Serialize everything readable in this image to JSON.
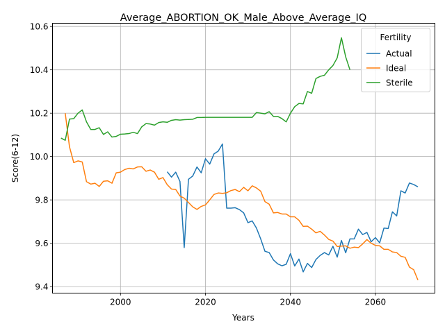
{
  "chart_data": {
    "type": "line",
    "title": "Average_ABORTION_OK_Male_Above_Average_IQ",
    "xlabel": "Years",
    "ylabel": "Score(6-12)",
    "xlim": [
      1984,
      2074
    ],
    "ylim": [
      9.37,
      10.615
    ],
    "xticks": [
      2000,
      2020,
      2040,
      2060
    ],
    "yticks": [
      9.4,
      9.6,
      9.8,
      10.0,
      10.2,
      10.4,
      10.6
    ],
    "grid": true,
    "legend": {
      "title": "Fertility",
      "position": "top-right"
    },
    "series": [
      {
        "name": "Actual",
        "color": "#1f77b4",
        "x": [
          2011,
          2012,
          2013,
          2014,
          2015,
          2016,
          2017,
          2018,
          2019,
          2020,
          2021,
          2022,
          2023,
          2024,
          2025,
          2026,
          2027,
          2028,
          2029,
          2030,
          2031,
          2032,
          2033,
          2034,
          2035,
          2036,
          2037,
          2038,
          2039,
          2040,
          2041,
          2042,
          2043,
          2044,
          2045,
          2046,
          2047,
          2048,
          2049,
          2050,
          2051,
          2052,
          2053,
          2054,
          2055,
          2056,
          2057,
          2058,
          2059,
          2060,
          2061,
          2062,
          2063,
          2064,
          2065,
          2066,
          2067,
          2068,
          2069,
          2070
        ],
        "y": [
          9.93,
          9.905,
          9.928,
          9.885,
          9.58,
          9.895,
          9.91,
          9.952,
          9.925,
          9.99,
          9.965,
          10.012,
          10.025,
          10.058,
          9.762,
          9.762,
          9.764,
          9.755,
          9.74,
          9.695,
          9.703,
          9.67,
          9.62,
          9.563,
          9.557,
          9.523,
          9.505,
          9.496,
          9.503,
          9.552,
          9.495,
          9.527,
          9.468,
          9.507,
          9.488,
          9.525,
          9.544,
          9.557,
          9.546,
          9.586,
          9.536,
          9.613,
          9.556,
          9.62,
          9.62,
          9.665,
          9.64,
          9.65,
          9.607,
          9.626,
          9.602,
          9.67,
          9.668,
          9.745,
          9.726,
          9.842,
          9.832,
          9.878,
          9.871,
          9.86
        ]
      },
      {
        "name": "Ideal",
        "color": "#ff7f0e",
        "x": [
          1987,
          1988,
          1989,
          1990,
          1991,
          1992,
          1993,
          1994,
          1995,
          1996,
          1997,
          1998,
          1999,
          2000,
          2001,
          2002,
          2003,
          2004,
          2005,
          2006,
          2007,
          2008,
          2009,
          2010,
          2011,
          2012,
          2013,
          2014,
          2015,
          2016,
          2017,
          2018,
          2019,
          2020,
          2021,
          2022,
          2023,
          2024,
          2025,
          2026,
          2027,
          2028,
          2029,
          2030,
          2031,
          2032,
          2033,
          2034,
          2035,
          2036,
          2037,
          2038,
          2039,
          2040,
          2041,
          2042,
          2043,
          2044,
          2045,
          2046,
          2047,
          2048,
          2049,
          2050,
          2051,
          2052,
          2053,
          2054,
          2055,
          2056,
          2057,
          2058,
          2059,
          2060,
          2061,
          2062,
          2063,
          2064,
          2065,
          2066,
          2067,
          2068,
          2069,
          2070
        ],
        "y": [
          10.2,
          10.045,
          9.972,
          9.98,
          9.975,
          9.884,
          9.873,
          9.877,
          9.862,
          9.886,
          9.888,
          9.877,
          9.925,
          9.928,
          9.94,
          9.946,
          9.943,
          9.952,
          9.953,
          9.932,
          9.938,
          9.928,
          9.895,
          9.903,
          9.87,
          9.85,
          9.848,
          9.818,
          9.808,
          9.788,
          9.768,
          9.756,
          9.77,
          9.777,
          9.8,
          9.825,
          9.832,
          9.83,
          9.833,
          9.843,
          9.848,
          9.838,
          9.858,
          9.842,
          9.865,
          9.855,
          9.84,
          9.792,
          9.78,
          9.74,
          9.742,
          9.735,
          9.735,
          9.722,
          9.722,
          9.706,
          9.678,
          9.679,
          9.665,
          9.648,
          9.655,
          9.638,
          9.618,
          9.61,
          9.585,
          9.587,
          9.588,
          9.577,
          9.582,
          9.58,
          9.597,
          9.617,
          9.6,
          9.59,
          9.588,
          9.572,
          9.572,
          9.56,
          9.557,
          9.54,
          9.535,
          9.49,
          9.478,
          9.43
        ]
      },
      {
        "name": "Sterile",
        "color": "#2ca02c",
        "x": [
          1986,
          1987,
          1988,
          1989,
          1990,
          1991,
          1992,
          1993,
          1994,
          1995,
          1996,
          1997,
          1998,
          1999,
          2000,
          2001,
          2002,
          2003,
          2004,
          2005,
          2006,
          2007,
          2008,
          2009,
          2010,
          2011,
          2012,
          2013,
          2014,
          2015,
          2016,
          2017,
          2018,
          2019,
          2020,
          2021,
          2022,
          2023,
          2024,
          2025,
          2026,
          2027,
          2028,
          2029,
          2030,
          2031,
          2032,
          2033,
          2034,
          2035,
          2036,
          2037,
          2038,
          2039,
          2040,
          2041,
          2042,
          2043,
          2044,
          2045,
          2046,
          2047,
          2048,
          2049,
          2050,
          2051,
          2052,
          2053,
          2054
        ],
        "y": [
          10.085,
          10.075,
          10.173,
          10.175,
          10.2,
          10.215,
          10.16,
          10.125,
          10.125,
          10.133,
          10.102,
          10.114,
          10.09,
          10.093,
          10.103,
          10.104,
          10.106,
          10.112,
          10.106,
          10.137,
          10.152,
          10.15,
          10.145,
          10.157,
          10.16,
          10.158,
          10.167,
          10.17,
          10.168,
          10.17,
          10.171,
          10.172,
          10.18,
          10.18,
          10.181,
          10.181,
          10.181,
          10.181,
          10.181,
          10.181,
          10.181,
          10.181,
          10.181,
          10.181,
          10.181,
          10.181,
          10.203,
          10.2,
          10.197,
          10.207,
          10.185,
          10.185,
          10.175,
          10.16,
          10.2,
          10.23,
          10.245,
          10.243,
          10.3,
          10.292,
          10.36,
          10.37,
          10.375,
          10.4,
          10.42,
          10.455,
          10.548,
          10.46,
          10.4
        ]
      }
    ]
  }
}
